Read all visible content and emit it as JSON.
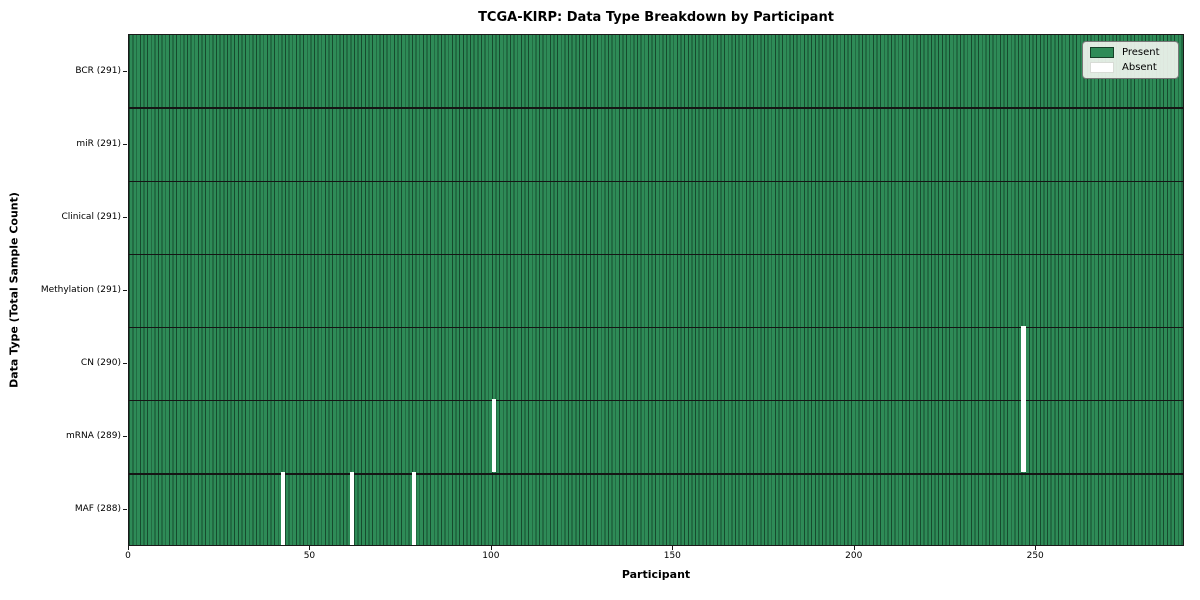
{
  "figure": {
    "title": "TCGA-KIRP: Data Type Breakdown by Participant",
    "xlabel": "Participant",
    "ylabel": "Data Type (Total Sample Count)"
  },
  "legend": {
    "present_label": "Present",
    "absent_label": "Absent"
  },
  "colors": {
    "present": "#2e8b57",
    "absent": "#ffffff",
    "cell_edge": "#1d4a33",
    "row_divider": "#151515",
    "plot_border": "#1a1a1a",
    "legend_bg": "#f0f4ee"
  },
  "chart_data": {
    "type": "heatmap",
    "title": "TCGA-KIRP: Data Type Breakdown by Participant",
    "xlabel": "Participant",
    "ylabel": "Data Type (Total Sample Count)",
    "n_participants": 291,
    "xlim": [
      0,
      291
    ],
    "x_ticks": [
      0,
      50,
      100,
      150,
      200,
      250
    ],
    "legend": [
      "Present",
      "Absent"
    ],
    "legend_position": "upper right",
    "grid": false,
    "rows": [
      {
        "label": "BCR (291)",
        "data_type": "BCR",
        "present_count": 291,
        "absent_participants": []
      },
      {
        "label": "miR (291)",
        "data_type": "miR",
        "present_count": 291,
        "absent_participants": []
      },
      {
        "label": "Clinical (291)",
        "data_type": "Clinical",
        "present_count": 291,
        "absent_participants": []
      },
      {
        "label": "Methylation (291)",
        "data_type": "Methylation",
        "present_count": 291,
        "absent_participants": []
      },
      {
        "label": "CN (290)",
        "data_type": "CN",
        "present_count": 290,
        "absent_participants": [
          246
        ]
      },
      {
        "label": "mRNA (289)",
        "data_type": "mRNA",
        "present_count": 289,
        "absent_participants": [
          100,
          246
        ]
      },
      {
        "label": "MAF (288)",
        "data_type": "MAF",
        "present_count": 288,
        "absent_participants": [
          42,
          61,
          78
        ]
      }
    ]
  }
}
